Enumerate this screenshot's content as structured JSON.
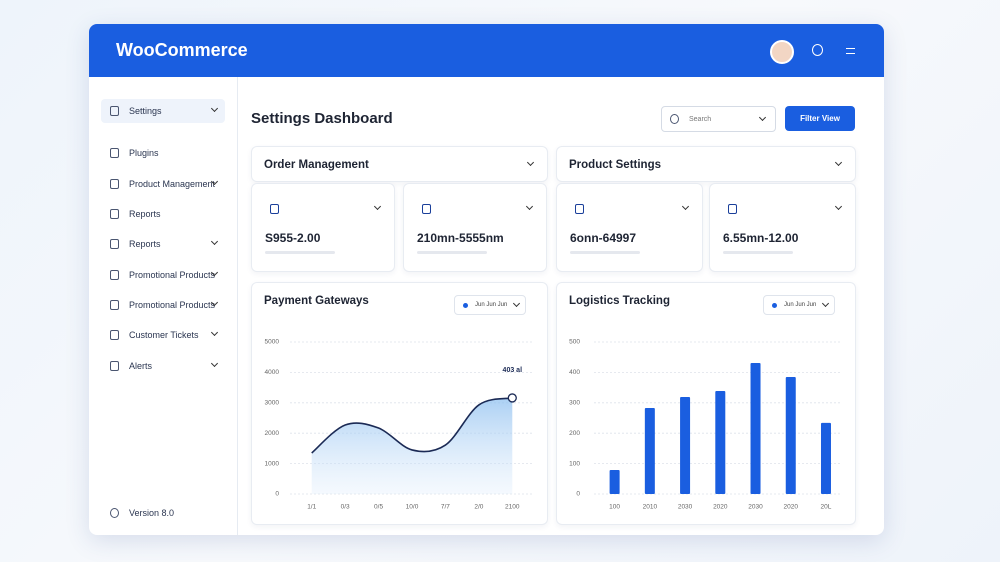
{
  "header": {
    "brand": "WooCommerce"
  },
  "sidebar": {
    "items": [
      "Settings",
      "Plugins",
      "Product Management",
      "Reports",
      "Reports",
      "Promotional Products",
      "Promotional Products",
      "Customer Tickets",
      "Alerts"
    ],
    "version": "Version 8.0"
  },
  "toolbar": {
    "title": "Settings Dashboard",
    "search": "Search",
    "button": "Filter View"
  },
  "panels": [
    {
      "title": "Order Management",
      "stats": [
        "S955-2.00",
        "210mn-5555nm"
      ]
    },
    {
      "title": "Product Settings",
      "stats": [
        "6onn-64997",
        "6.55mn-12.00"
      ]
    }
  ],
  "chart_data": [
    {
      "type": "line",
      "title": "Payment Gateways",
      "filter": "Jun  Jun  Jun",
      "annotation": "403 al",
      "categories": [
        "1/1",
        "0/3",
        "0/5",
        "10/0",
        "7/7",
        "2/0",
        "2100"
      ],
      "series": [
        {
          "name": "Payment Gateways",
          "color": "#1b2a55",
          "values": [
            1350,
            2270,
            2170,
            1450,
            1610,
            2930,
            3160
          ]
        }
      ],
      "ylim": [
        0,
        5000
      ],
      "yticks": [
        0,
        1000,
        2000,
        3000,
        4000,
        5000
      ],
      "grid": true
    },
    {
      "type": "bar",
      "title": "Logistics Tracking",
      "filter": "Jun  Jun  Jun",
      "categories": [
        "100",
        "2010",
        "2030",
        "2020",
        "2030",
        "2020",
        "20L"
      ],
      "values": [
        79,
        283,
        319,
        339,
        431,
        385,
        234
      ],
      "color": "#1a5ee0",
      "ylim": [
        0,
        500
      ],
      "yticks": [
        0,
        100,
        200,
        300,
        400,
        500
      ],
      "grid": true
    }
  ]
}
